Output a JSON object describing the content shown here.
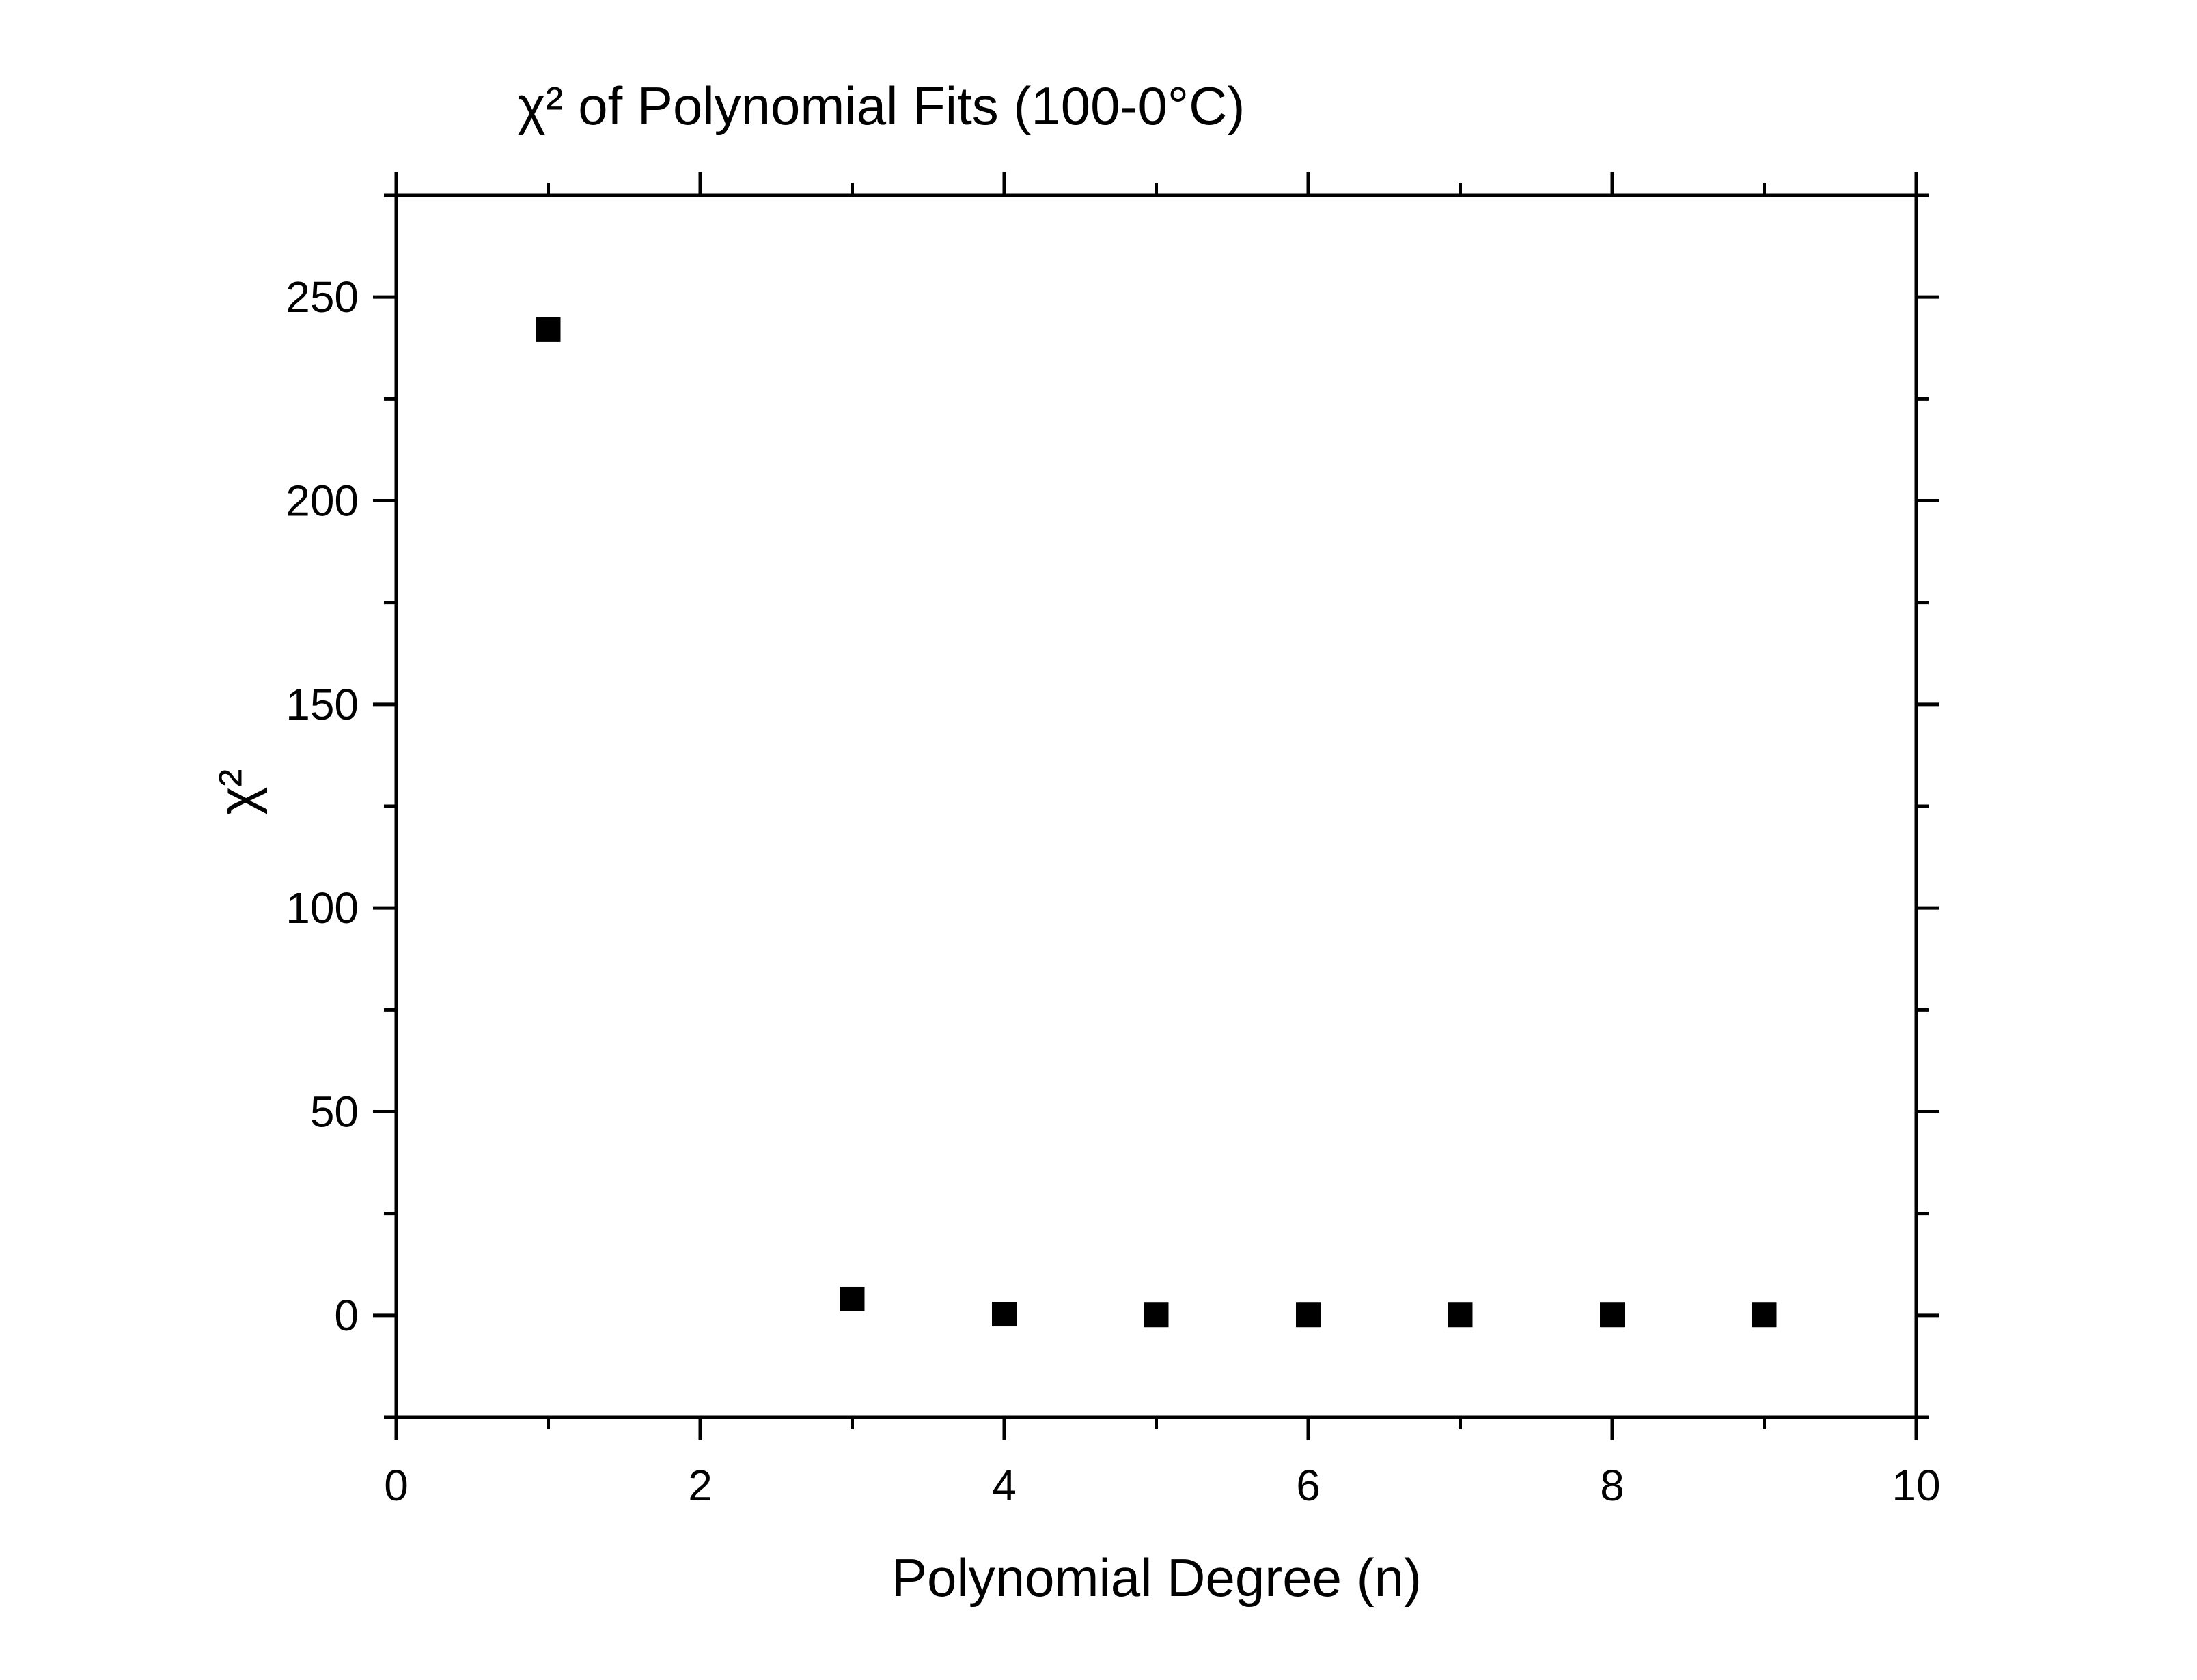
{
  "chart_data": {
    "type": "scatter",
    "title": "χ² of Polynomial Fits (100-0°C)",
    "xlabel": "Polynomial Degree (n)",
    "ylabel": "χ²",
    "xlim": [
      0,
      10
    ],
    "ylim": [
      -25,
      275
    ],
    "x_ticks": [
      0,
      2,
      4,
      6,
      8,
      10
    ],
    "x_minor_ticks": [
      1,
      3,
      5,
      7,
      9
    ],
    "y_ticks": [
      0,
      50,
      100,
      150,
      200,
      250
    ],
    "y_minor_ticks": [
      -25,
      25,
      75,
      125,
      175,
      225,
      275
    ],
    "x_tick_labels": [
      "0",
      "2",
      "4",
      "6",
      "8",
      "10"
    ],
    "y_tick_labels": [
      "0",
      "50",
      "100",
      "150",
      "200",
      "250"
    ],
    "grid": false,
    "legend": "none",
    "marker": "square",
    "marker_color": "#000000",
    "series": [
      {
        "x": [
          1,
          3,
          4,
          5,
          6,
          7,
          8,
          9
        ],
        "y": [
          242,
          4,
          0.3,
          0.1,
          0.1,
          0.1,
          0.1,
          0.1
        ]
      }
    ]
  }
}
